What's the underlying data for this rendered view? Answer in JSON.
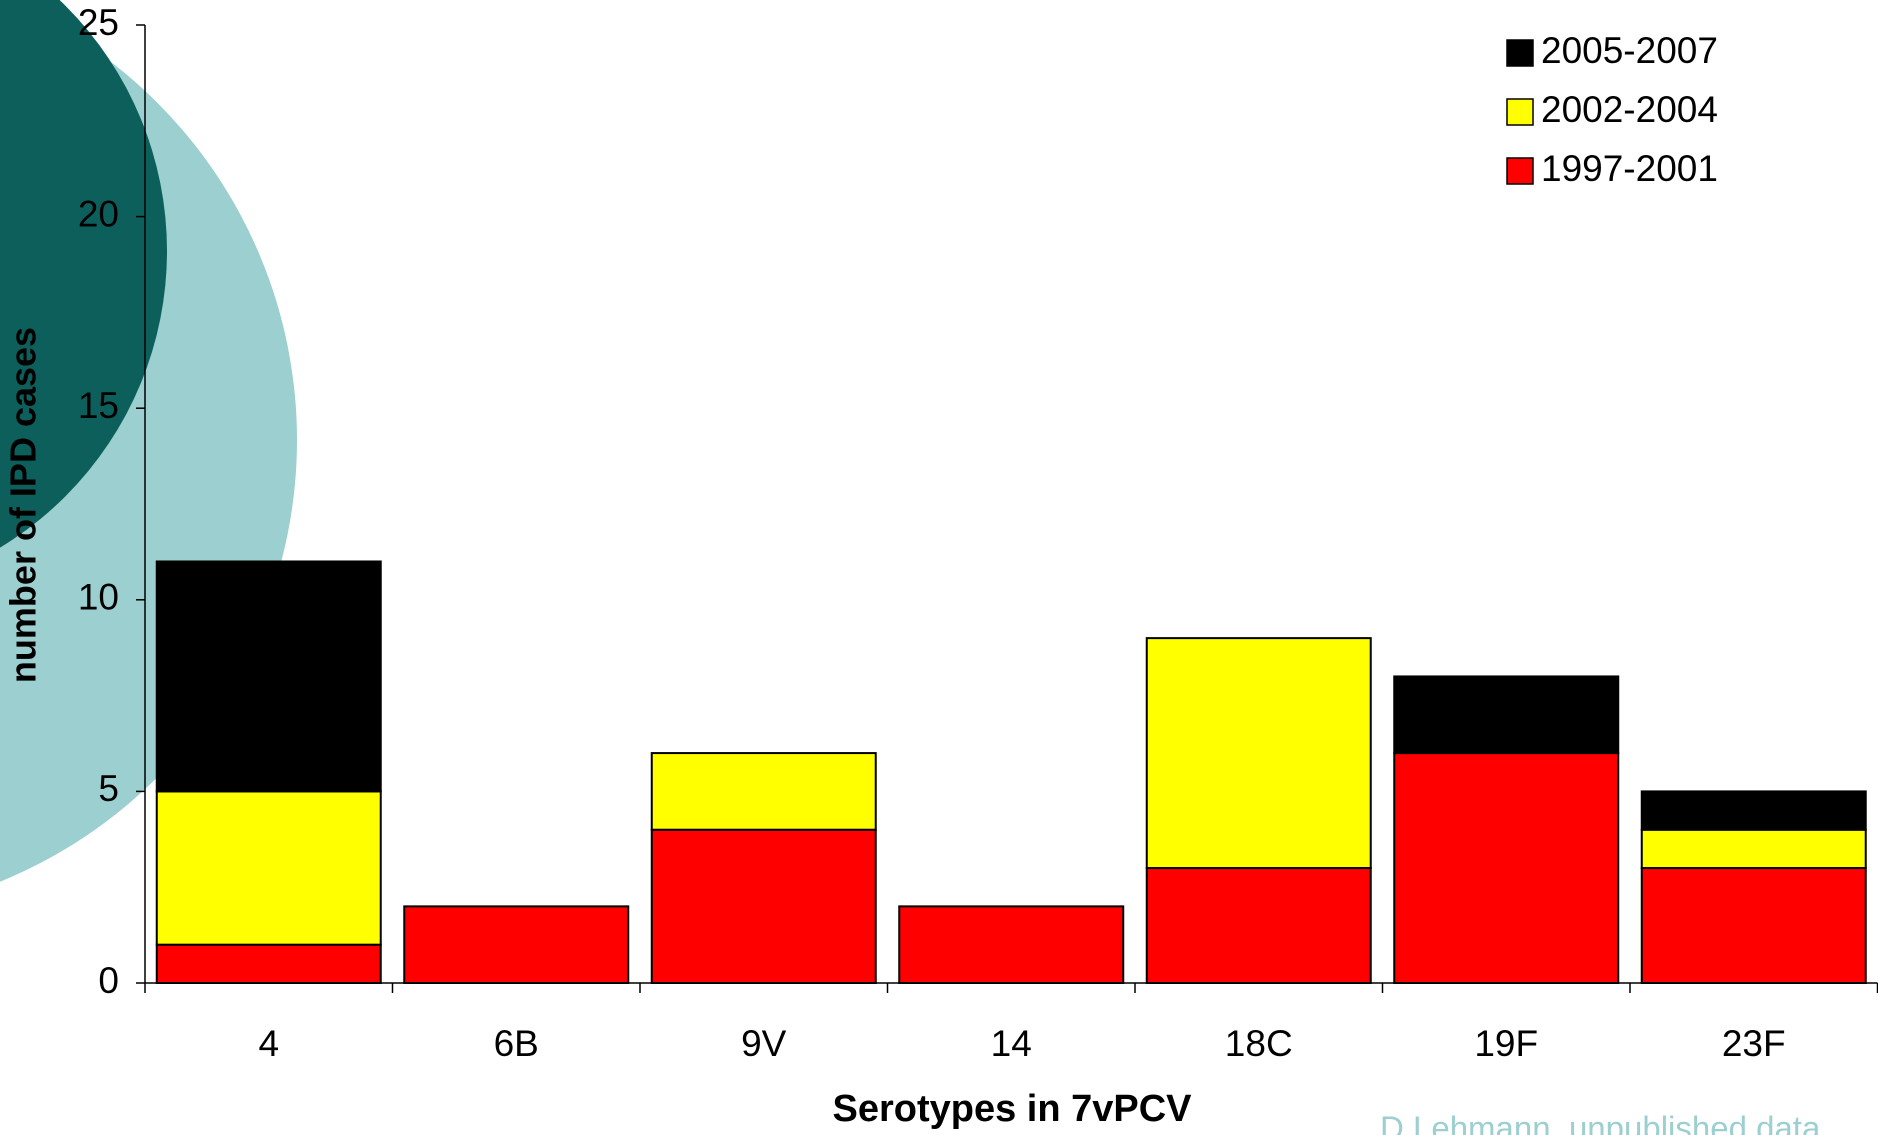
{
  "chart_data": {
    "type": "stacked_bar",
    "categories": [
      "4",
      "6B",
      "9V",
      "14",
      "18C",
      "19F",
      "23F"
    ],
    "series": [
      {
        "name": "1997-2001",
        "color": "#ff0000",
        "values": [
          1,
          2,
          4,
          2,
          3,
          6,
          3
        ]
      },
      {
        "name": "2002-2004",
        "color": "#ffff00",
        "values": [
          4,
          0,
          2,
          0,
          6,
          0,
          1
        ]
      },
      {
        "name": "2005-2007",
        "color": "#000000",
        "values": [
          6,
          0,
          0,
          0,
          0,
          2,
          1
        ]
      }
    ],
    "ylim": [
      0,
      25
    ],
    "yticks": [
      0,
      5,
      10,
      15,
      20,
      25
    ],
    "y_label": "number of IPD cases",
    "x_label": "Serotypes in 7vPCV",
    "annotation": "D Lehmann, unpublished data",
    "legend": "top-right",
    "grid": false
  }
}
